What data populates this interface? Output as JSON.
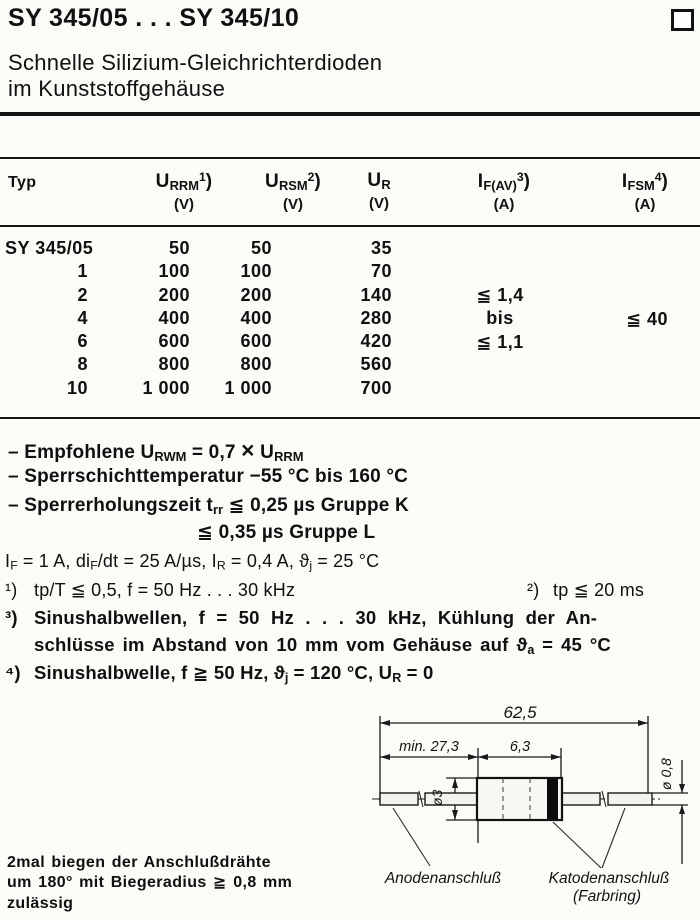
{
  "doc": {
    "title": "SY 345/05 . . . SY 345/10",
    "subtitle1": "Schnelle Silizium-Gleichrichterdioden",
    "subtitle2": "im Kunststoffgehäuse"
  },
  "table": {
    "col_typ": "Typ",
    "headers": [
      {
        "sym": "U<sub>RRM</sub><sup>1</sup>)",
        "unit": "(V)"
      },
      {
        "sym": "U<sub>RSM</sub><sup>2</sup>)",
        "unit": "(V)"
      },
      {
        "sym": "U<sub>R</sub>",
        "unit": "(V)"
      },
      {
        "sym": "I<sub>F(AV)</sub><sup>3</sup>)",
        "unit": "(A)"
      },
      {
        "sym": "I<sub>FSM</sub><sup>4</sup>)",
        "unit": "(A)"
      }
    ],
    "rows": [
      {
        "typ": "SY 345/05",
        "urrm": "50",
        "ursm": "50",
        "ur": "35"
      },
      {
        "typ": "1",
        "urrm": "100",
        "ursm": "100",
        "ur": "70"
      },
      {
        "typ": "2",
        "urrm": "200",
        "ursm": "200",
        "ur": "140"
      },
      {
        "typ": "4",
        "urrm": "400",
        "ursm": "400",
        "ur": "280"
      },
      {
        "typ": "6",
        "urrm": "600",
        "ursm": "600",
        "ur": "420"
      },
      {
        "typ": "8",
        "urrm": "800",
        "ursm": "800",
        "ur": "560"
      },
      {
        "typ": "10",
        "urrm": "1 000",
        "ursm": "1 000",
        "ur": "700"
      }
    ],
    "ifav_range": [
      "≦ 1,4",
      "bis",
      "≦ 1,1"
    ],
    "ifsm": "≦ 40"
  },
  "notes": {
    "n1": "– Empfohlene U<sub>RWM</sub> = 0,7 <span class=\"mult\">×</span> U<sub>RRM</sub>",
    "n2": "– Sperrschichttemperatur −55 °C bis 160 °C",
    "n3": "– Sperrerholungszeit t<sub>rr</sub> ≦ 0,25 µs Gruppe K",
    "n4": "≦ 0,35 µs Gruppe L"
  },
  "conditions": "I<sub>F</sub> = 1 A, di<sub>F</sub>/dt = 25 A/µs, I<sub>R</sub> = 0,4 A, ϑ<sub>j</sub> = 25 °C",
  "footnotes": {
    "f1_marker": "¹)",
    "f1_text": "tp/T ≦ 0,5, f = 50 Hz . . . 30 kHz",
    "f2_marker": "²)",
    "f2_text": "tp ≦ 20 ms",
    "f3_marker": "³)",
    "f3_line1": "Sinushalbwellen, f = 50 Hz . . . 30 kHz, Kühlung der An-",
    "f3_line2": "schlüsse im Abstand von 10 mm vom Gehäuse auf ϑ<sub>a</sub> = 45 °C",
    "f4_marker": "⁴)",
    "f4_text": "Sinushalbwelle, f ≧ 50 Hz, ϑ<sub>j</sub> = 120 °C, U<sub>R</sub> = 0"
  },
  "diagram": {
    "dim_overall": "62,5",
    "dim_lead": "min. 27,3",
    "dim_body": "6,3",
    "dim_body_dia": "ø3",
    "dim_lead_dia": "ø 0,8",
    "label_anode": "Anodenanschluß",
    "label_cathode": "Katodenanschluß",
    "label_cathode2": "(Farbring)"
  },
  "bend_note": {
    "l1": "2mal biegen der Anschlußdrähte",
    "l2": "um 180° mit Biegeradius ≧ 0,8 mm",
    "l3": "zulässig"
  }
}
